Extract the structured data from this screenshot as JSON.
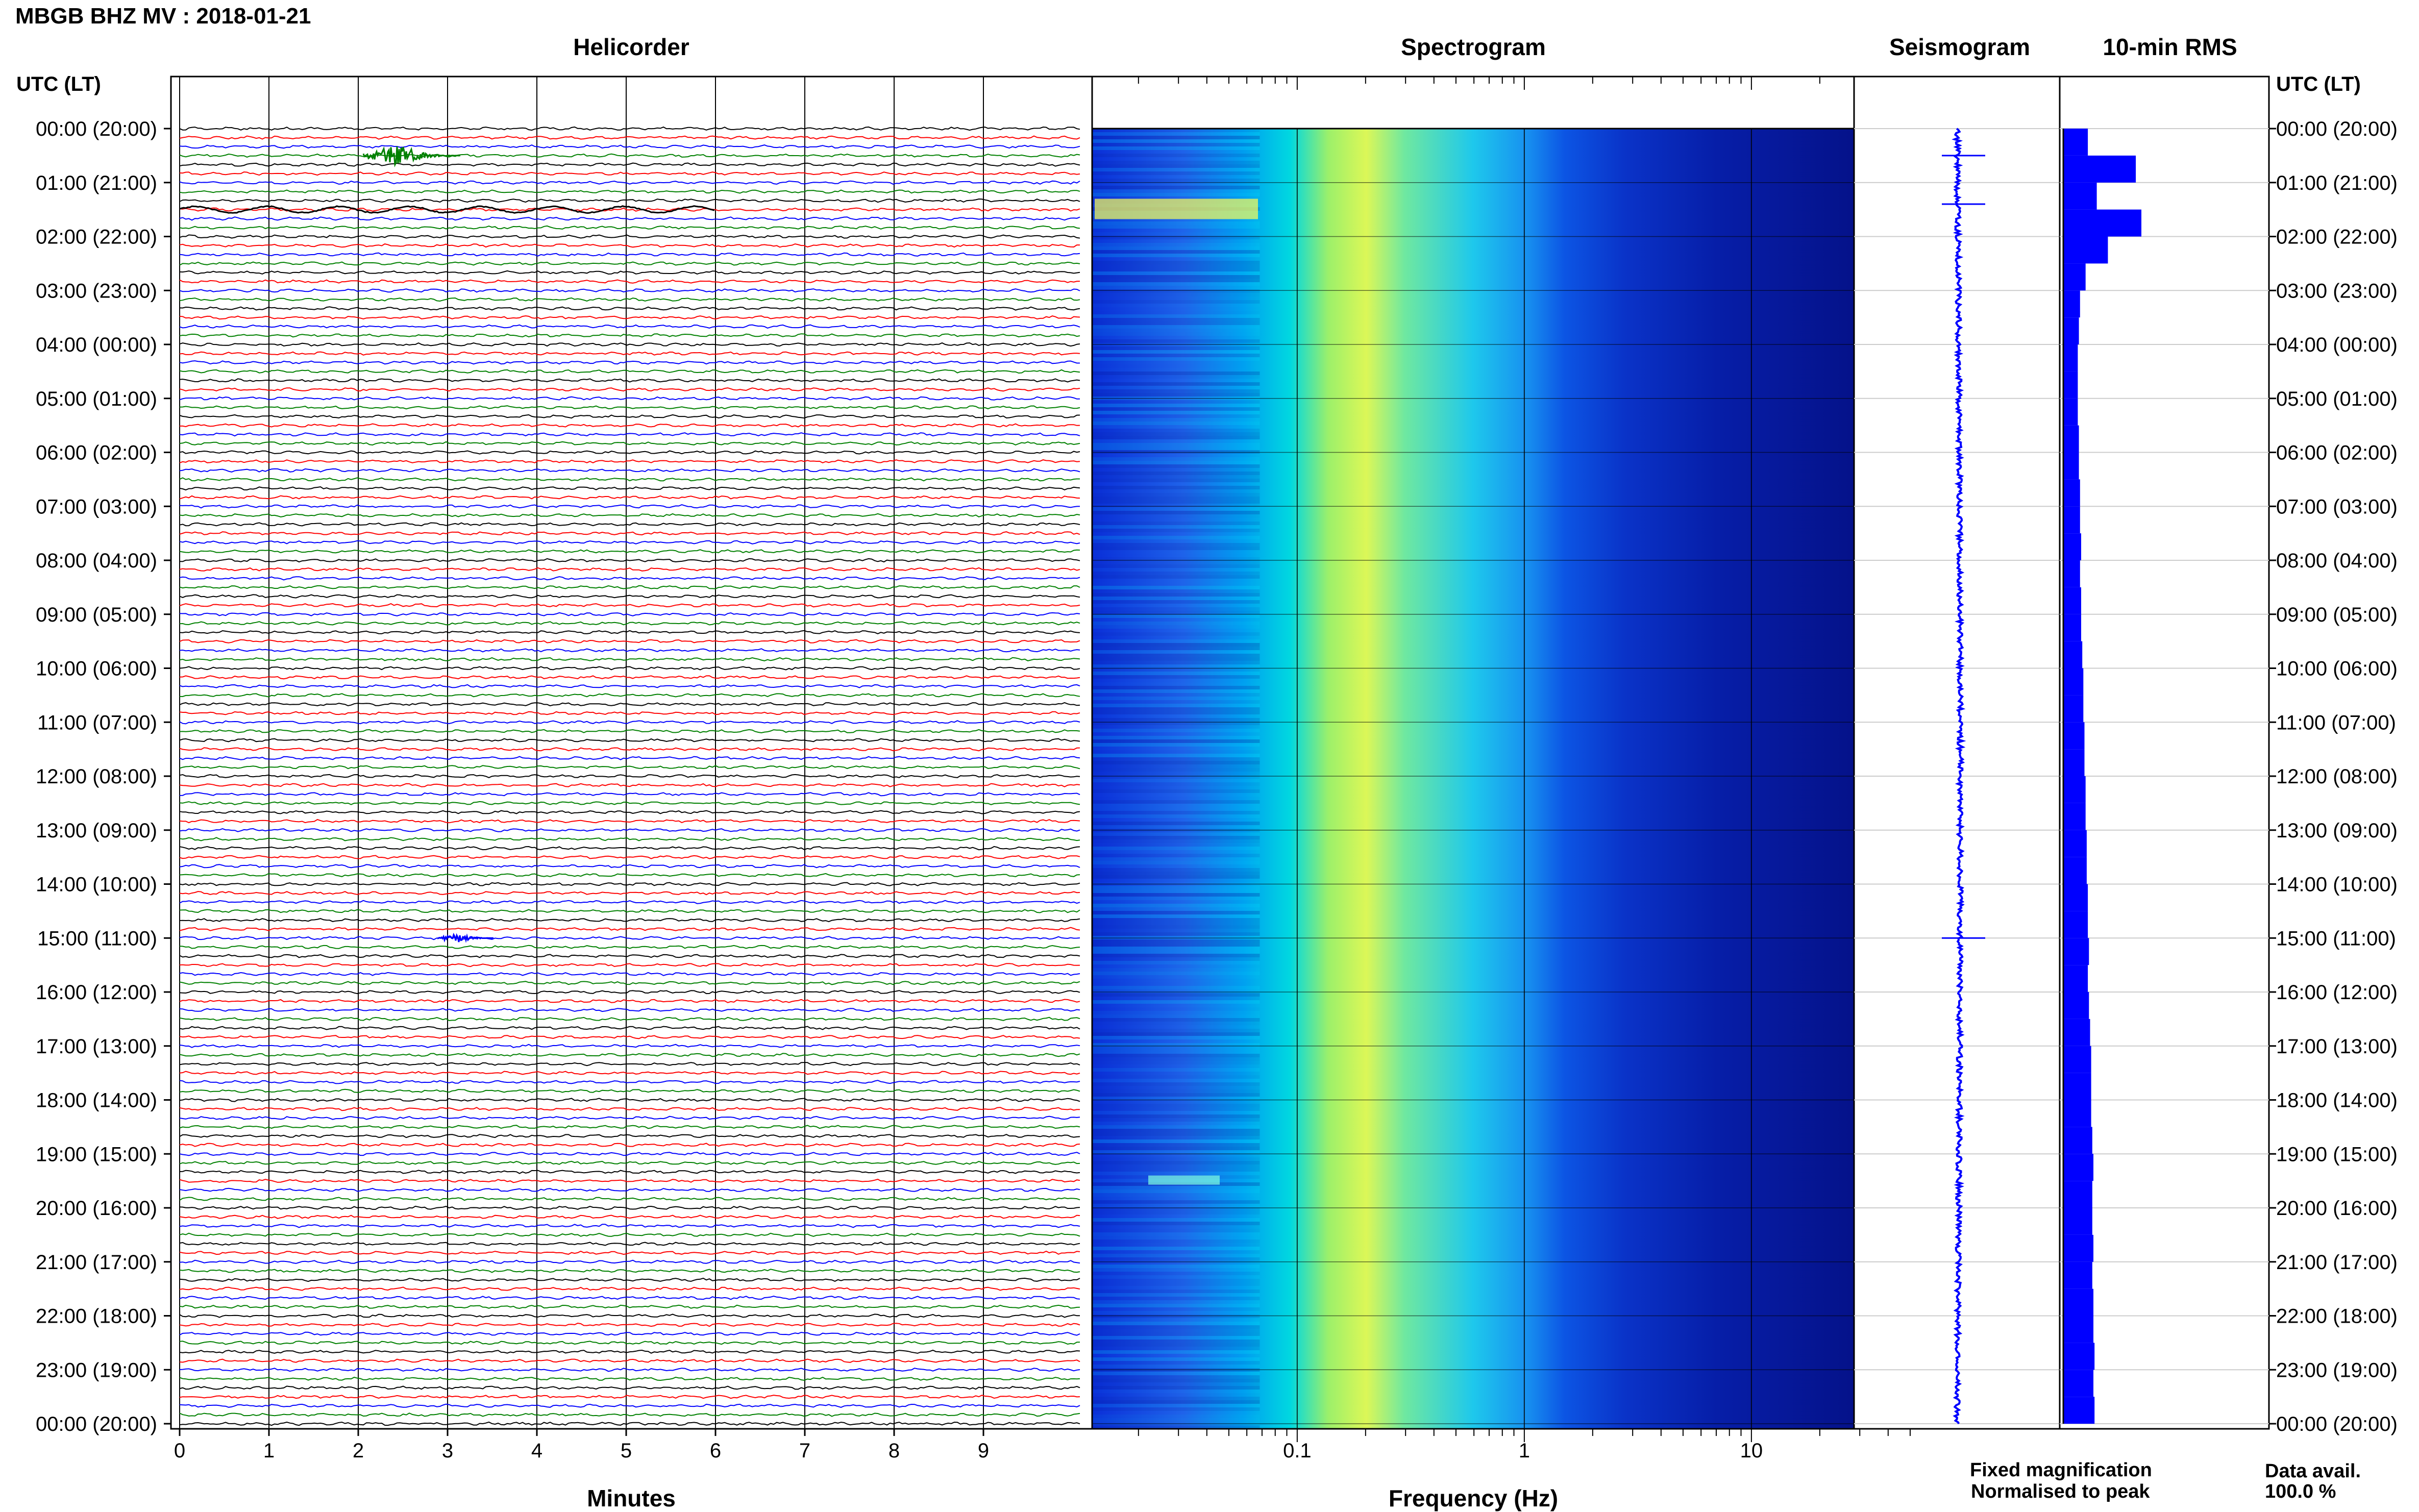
{
  "header": {
    "station_title": "MBGB BHZ MV : 2018-01-21",
    "time_axis_label_left": "UTC (LT)",
    "time_axis_label_right": "UTC (LT)"
  },
  "panels": {
    "helicorder_title": "Helicorder",
    "spectrogram_title": "Spectrogram",
    "seismogram_title": "Seismogram",
    "rms_title": "10-min RMS"
  },
  "time_labels": [
    "00:00 (20:00)",
    "01:00 (21:00)",
    "02:00 (22:00)",
    "03:00 (23:00)",
    "04:00 (00:00)",
    "05:00 (01:00)",
    "06:00 (02:00)",
    "07:00 (03:00)",
    "08:00 (04:00)",
    "09:00 (05:00)",
    "10:00 (06:00)",
    "11:00 (07:00)",
    "12:00 (08:00)",
    "13:00 (09:00)",
    "14:00 (10:00)",
    "15:00 (11:00)",
    "16:00 (12:00)",
    "17:00 (13:00)",
    "18:00 (14:00)",
    "19:00 (15:00)",
    "20:00 (16:00)",
    "21:00 (17:00)",
    "22:00 (18:00)",
    "23:00 (19:00)",
    "00:00 (20:00)"
  ],
  "legend": {
    "fixed": "Fixed magnification",
    "normalised": "Normalised to peak",
    "fixed_color": "#0000ff",
    "normalised_color": "#ff0000"
  },
  "data_availability": {
    "label": "Data avail.",
    "value": "100.0 %"
  },
  "chart_data": [
    {
      "type": "line",
      "name": "helicorder",
      "title": "Helicorder",
      "xlabel": "Minutes",
      "x_ticks": [
        "0",
        "1",
        "2",
        "3",
        "4",
        "5",
        "6",
        "7",
        "8",
        "9"
      ],
      "xlim": [
        0,
        10
      ],
      "traces_per_hour": 6,
      "trace_colors": [
        "#000000",
        "#ff0000",
        "#0000ff",
        "#008000"
      ],
      "events": [
        {
          "hour": 0,
          "minute": 2.6,
          "color": "#008000",
          "amplitude": "large"
        },
        {
          "hour": 1,
          "minute": 0,
          "color": "#000000",
          "amplitude": "long-period"
        },
        {
          "hour": 15,
          "minute": 3.2,
          "color": "#0000ff",
          "amplitude": "medium"
        }
      ]
    },
    {
      "type": "heatmap",
      "name": "spectrogram",
      "title": "Spectrogram",
      "xlabel": "Frequency (Hz)",
      "x_scale": "log",
      "xlim": [
        0.01,
        50
      ],
      "x_ticks": [
        "0.1",
        "1",
        "10"
      ],
      "colormap": [
        "#00008b",
        "#0000ff",
        "#0066ff",
        "#00bfff",
        "#00ffd0",
        "#7fff7f",
        "#ffff55"
      ],
      "peak_band_hz": [
        0.15,
        0.4
      ]
    },
    {
      "type": "line",
      "name": "seismogram",
      "title": "Seismogram",
      "color": "#0000ff",
      "events_hours": [
        0.5,
        1.4,
        15.0
      ]
    },
    {
      "type": "bar",
      "name": "rms",
      "title": "10-min RMS",
      "color": "#0000ff",
      "hours": [
        0,
        0.5,
        1,
        1.5,
        2,
        2.5,
        3,
        3.5,
        4,
        4.5,
        5,
        5.5,
        6,
        6.5,
        7,
        7.5,
        8,
        8.5,
        9,
        9.5,
        10,
        10.5,
        11,
        11.5,
        12,
        12.5,
        13,
        13.5,
        14,
        14.5,
        15,
        15.5,
        16,
        16.5,
        17,
        17.5,
        18,
        18.5,
        19,
        19.5,
        20,
        20.5,
        21,
        21.5,
        22,
        22.5,
        23,
        23.5
      ],
      "values": [
        0.22,
        0.65,
        0.3,
        0.7,
        0.4,
        0.2,
        0.15,
        0.14,
        0.13,
        0.13,
        0.13,
        0.14,
        0.14,
        0.15,
        0.15,
        0.16,
        0.15,
        0.16,
        0.16,
        0.17,
        0.18,
        0.18,
        0.19,
        0.19,
        0.2,
        0.2,
        0.21,
        0.21,
        0.22,
        0.22,
        0.23,
        0.22,
        0.23,
        0.24,
        0.25,
        0.25,
        0.25,
        0.26,
        0.27,
        0.26,
        0.26,
        0.27,
        0.26,
        0.27,
        0.27,
        0.28,
        0.27,
        0.28
      ]
    }
  ]
}
